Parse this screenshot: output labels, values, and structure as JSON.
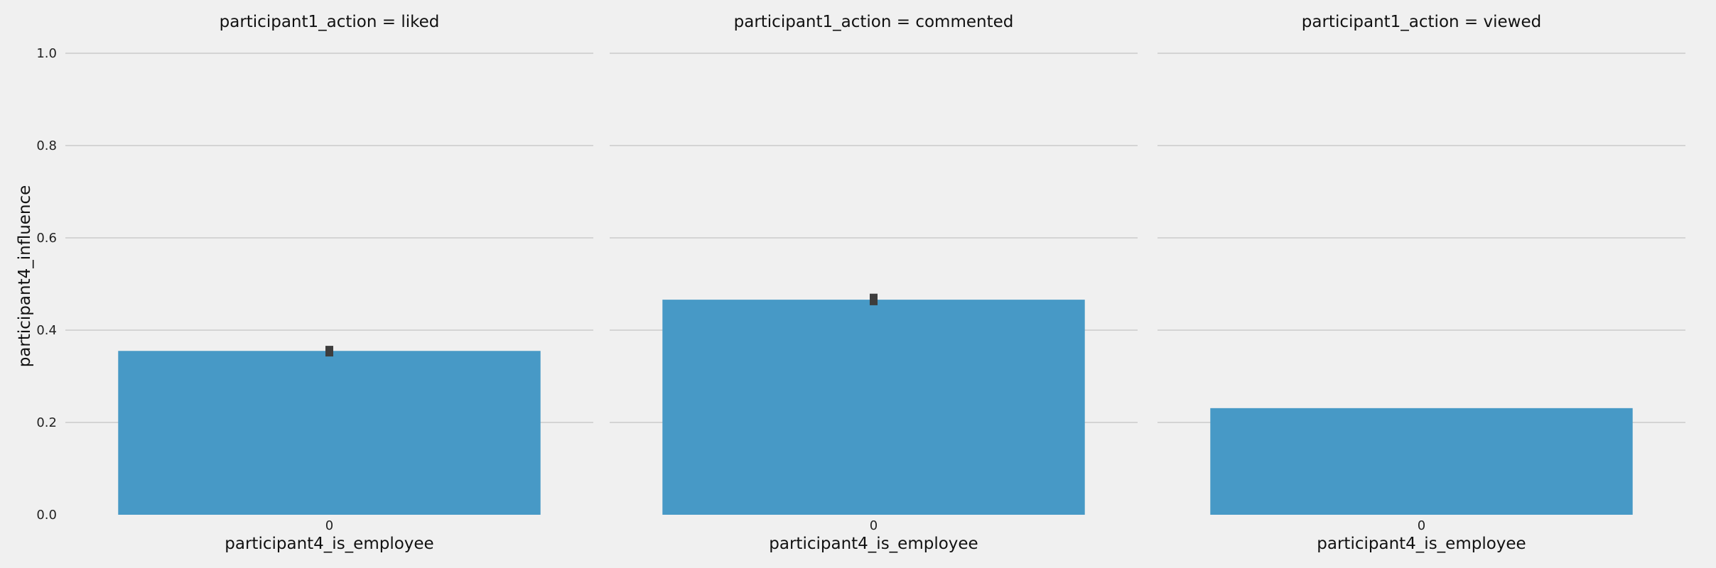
{
  "chart_data": {
    "type": "bar",
    "ylabel": "participant4_influence",
    "ylim": [
      0,
      1.0
    ],
    "yticks": [
      "0.0",
      "0.2",
      "0.4",
      "0.6",
      "0.8",
      "1.0"
    ],
    "ytick_values": [
      0,
      0.2,
      0.4,
      0.6,
      0.8,
      1.0
    ],
    "grid": true,
    "colors": {
      "bar": "#4799c6",
      "errorbar": "#3d3d3d",
      "grid": "#cbcbcb",
      "background": "#f0f0f0"
    },
    "panels": [
      {
        "title": "participant1_action = liked",
        "xlabel": "participant4_is_employee",
        "categories": [
          "0"
        ],
        "values": [
          0.355
        ],
        "error": [
          [
            0.343,
            0.366
          ]
        ]
      },
      {
        "title": "participant1_action = commented",
        "xlabel": "participant4_is_employee",
        "categories": [
          "0"
        ],
        "values": [
          0.466
        ],
        "error": [
          [
            0.454,
            0.479
          ]
        ]
      },
      {
        "title": "participant1_action = viewed",
        "xlabel": "participant4_is_employee",
        "categories": [
          "0"
        ],
        "values": [
          0.231
        ],
        "error": null
      }
    ]
  }
}
